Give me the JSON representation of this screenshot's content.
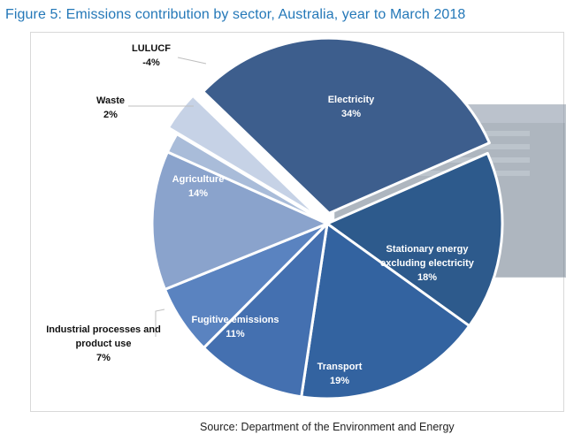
{
  "title": "Figure 5: Emissions contribution by sector, Australia, year to March 2018",
  "source": "Source: Department of the Environment and Energy",
  "colors": {
    "title": "#2478b8",
    "inner_label": "#ffffff",
    "outer_label": "#111111",
    "leader": "#bfbfbf"
  },
  "chart_data": {
    "type": "pie",
    "title": "Figure 5: Emissions contribution by sector, Australia, year to March 2018",
    "unit": "%",
    "start_angle_deg": -136,
    "slices": [
      {
        "id": "electricity",
        "name": "Electricity",
        "label_lines": [
          "Electricity"
        ],
        "value_label": "34%",
        "value": 34,
        "color": "#3d5e8d",
        "label_position": "inside",
        "exploded": true
      },
      {
        "id": "stationary",
        "name": "Stationary energy excluding electricity",
        "label_lines": [
          "Stationary energy",
          "excluding electricity"
        ],
        "value_label": "18%",
        "value": 18,
        "color": "#2d5a8c",
        "label_position": "inside",
        "exploded": false
      },
      {
        "id": "transport",
        "name": "Transport",
        "label_lines": [
          "Transport"
        ],
        "value_label": "19%",
        "value": 19,
        "color": "#3363a0",
        "label_position": "inside",
        "exploded": false
      },
      {
        "id": "fugitive",
        "name": "Fugitive emissions",
        "label_lines": [
          "Fugitive emissions"
        ],
        "value_label": "11%",
        "value": 11,
        "color": "#4470b0",
        "label_position": "inside",
        "exploded": false
      },
      {
        "id": "industrial",
        "name": "Industrial processes and product use",
        "label_lines": [
          "Industrial processes and",
          "product use"
        ],
        "value_label": "7%",
        "value": 7,
        "color": "#5a83c0",
        "label_position": "outside",
        "exploded": false
      },
      {
        "id": "agriculture",
        "name": "Agriculture",
        "label_lines": [
          "Agriculture"
        ],
        "value_label": "14%",
        "value": 14,
        "color": "#8aa3cc",
        "label_position": "inside",
        "exploded": false
      },
      {
        "id": "waste",
        "name": "Waste",
        "label_lines": [
          "Waste"
        ],
        "value_label": "2%",
        "value": 2,
        "color": "#a9bcd9",
        "label_position": "outside",
        "exploded": false
      },
      {
        "id": "lulucf",
        "name": "LULUCF",
        "label_lines": [
          "LULUCF"
        ],
        "value_label": "-4%",
        "value": -4,
        "color": "#c6d2e6",
        "label_position": "outside",
        "exploded": true
      }
    ]
  }
}
